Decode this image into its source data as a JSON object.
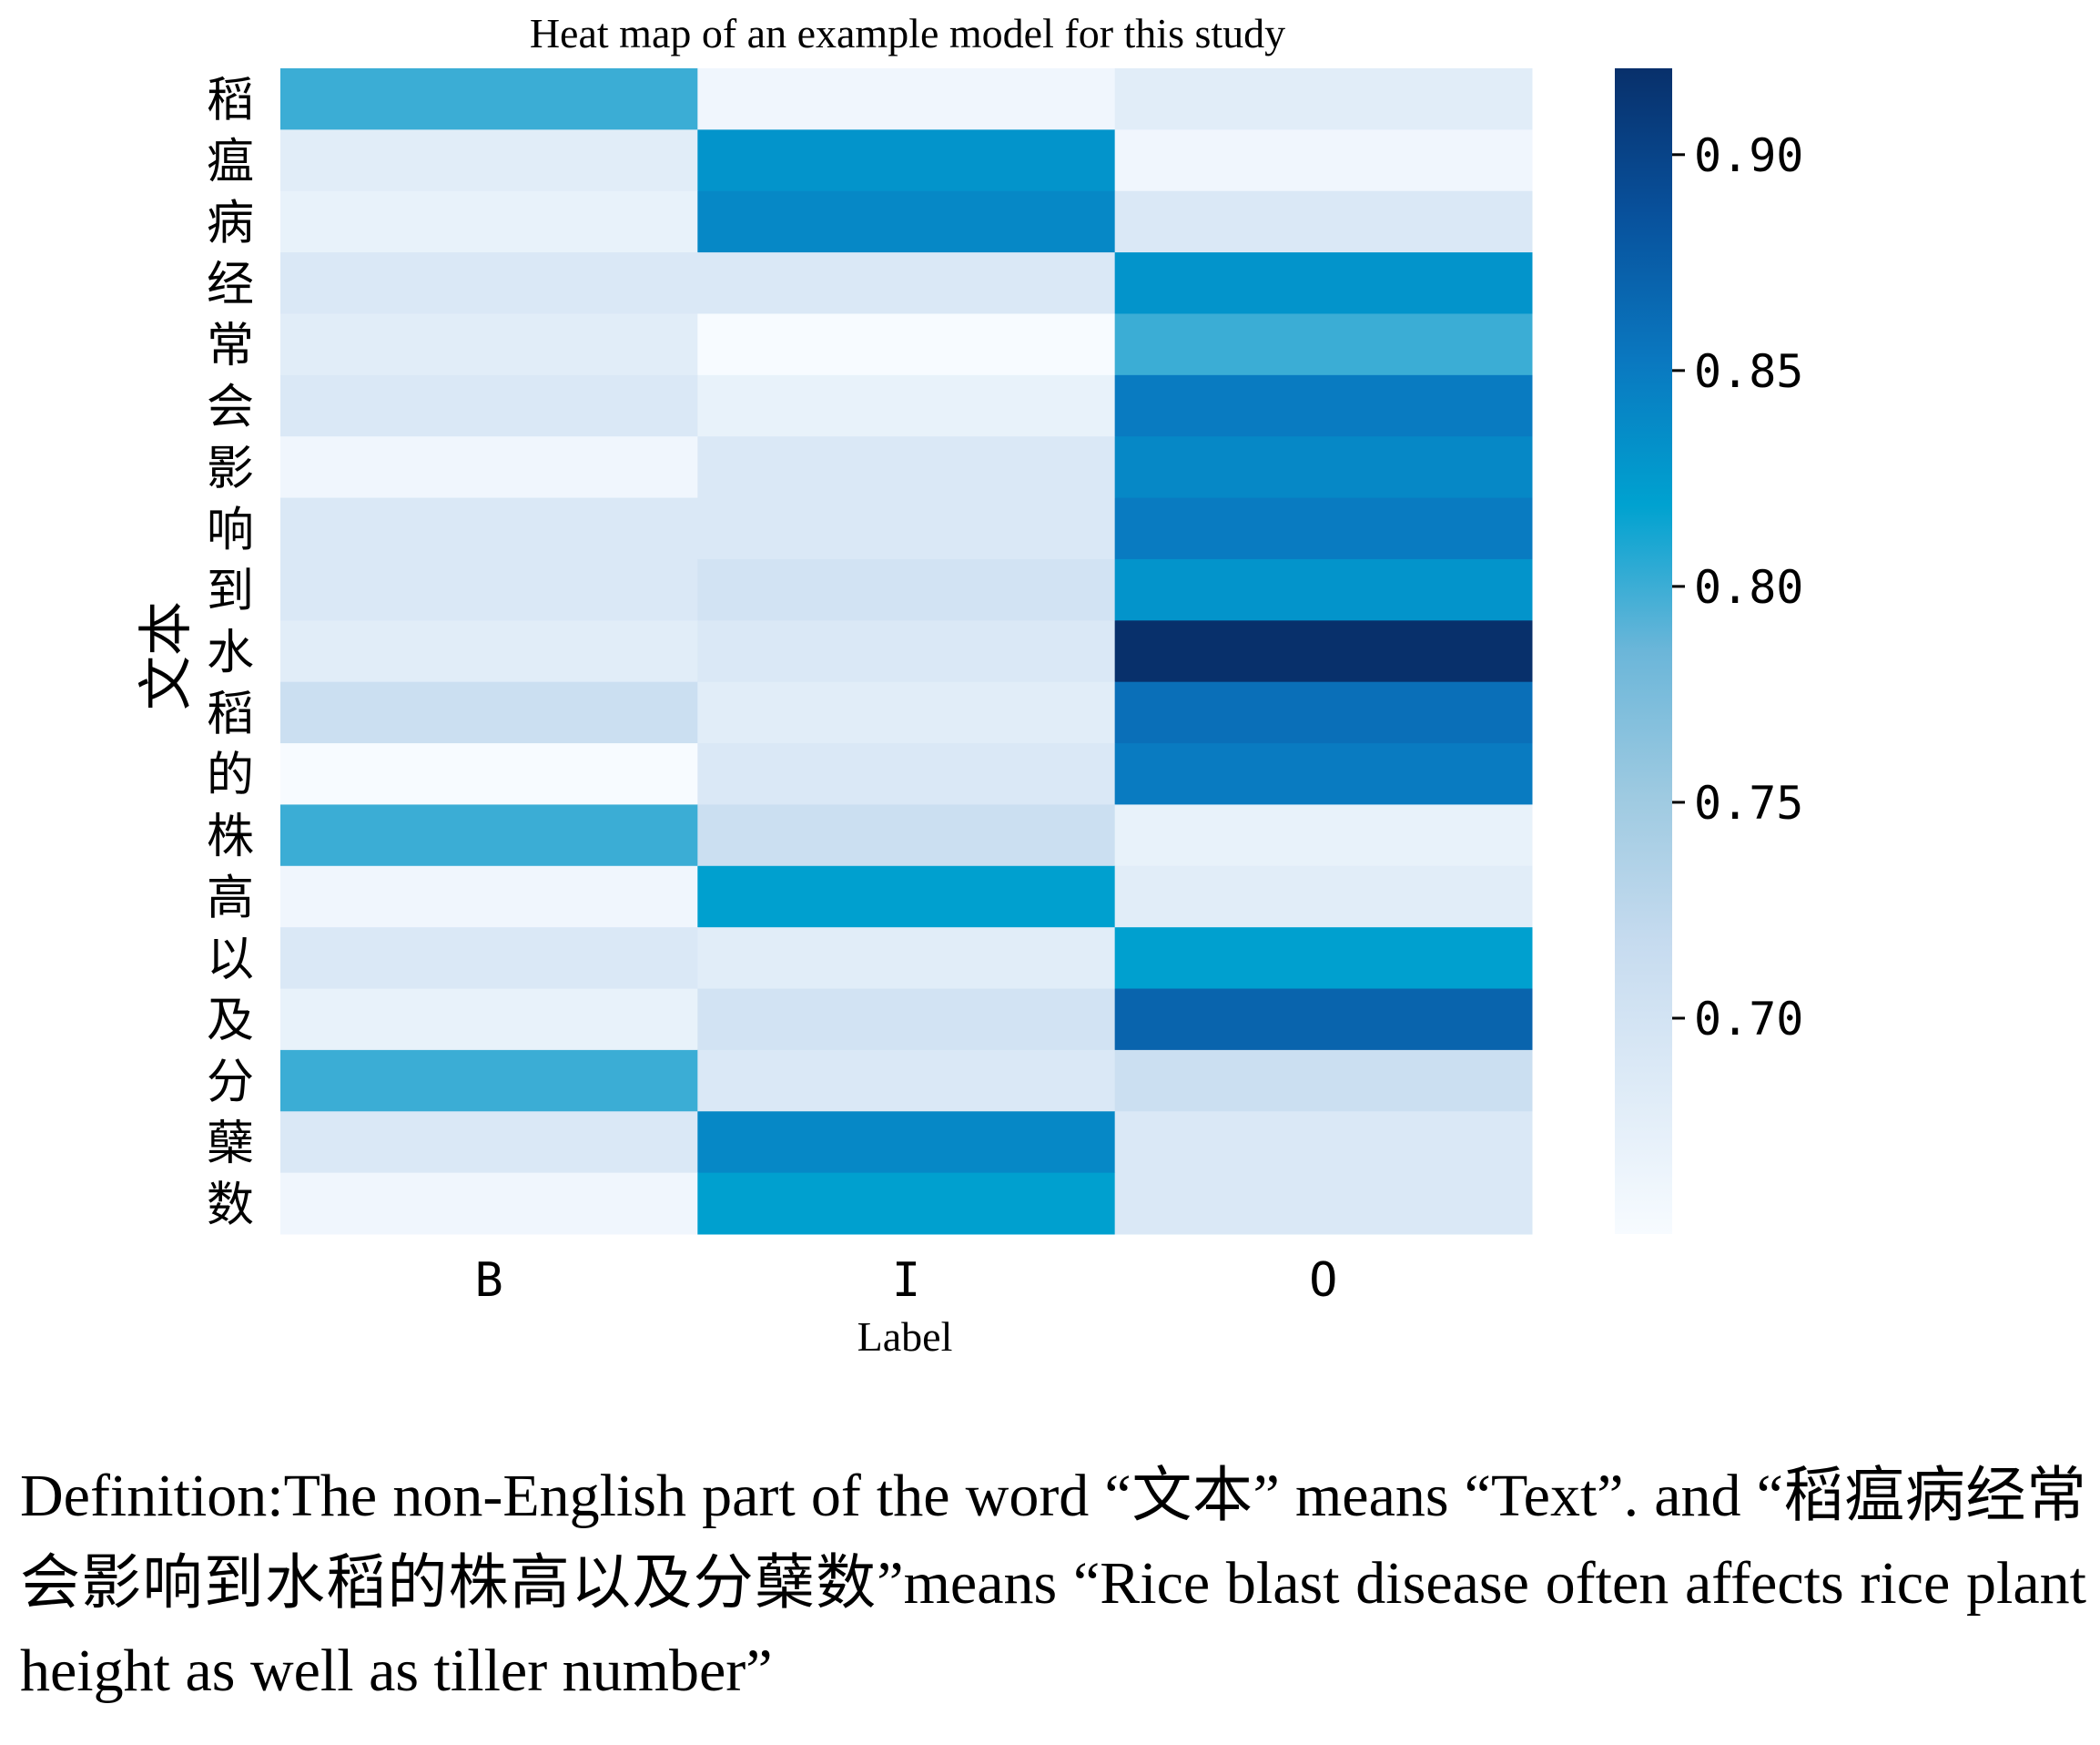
{
  "chart_data": {
    "type": "heatmap",
    "title": "Heat map of an example model for this study",
    "xlabel": "Label",
    "ylabel": "文本",
    "x_categories": [
      "B",
      "I",
      "O"
    ],
    "y_categories": [
      "稻",
      "瘟",
      "病",
      "经",
      "常",
      "会",
      "影",
      "响",
      "到",
      "水",
      "稻",
      "的",
      "株",
      "高",
      "以",
      "及",
      "分",
      "蘖",
      "数"
    ],
    "values": [
      [
        0.8,
        0.66,
        0.68
      ],
      [
        0.68,
        0.83,
        0.66
      ],
      [
        0.67,
        0.84,
        0.69
      ],
      [
        0.69,
        0.69,
        0.83
      ],
      [
        0.68,
        0.65,
        0.8
      ],
      [
        0.69,
        0.67,
        0.85
      ],
      [
        0.66,
        0.69,
        0.84
      ],
      [
        0.69,
        0.69,
        0.85
      ],
      [
        0.69,
        0.7,
        0.83
      ],
      [
        0.68,
        0.69,
        0.92
      ],
      [
        0.71,
        0.68,
        0.86
      ],
      [
        0.65,
        0.69,
        0.85
      ],
      [
        0.8,
        0.71,
        0.67
      ],
      [
        0.66,
        0.82,
        0.68
      ],
      [
        0.69,
        0.68,
        0.82
      ],
      [
        0.67,
        0.7,
        0.87
      ],
      [
        0.8,
        0.69,
        0.71
      ],
      [
        0.69,
        0.84,
        0.69
      ],
      [
        0.66,
        0.82,
        0.69
      ]
    ],
    "vmin": 0.65,
    "vmax": 0.92,
    "colormap": "Blues",
    "colorbar_ticks": [
      0.7,
      0.75,
      0.8,
      0.85,
      0.9
    ],
    "colorbar_tick_labels": [
      "0.70",
      "0.75",
      "0.80",
      "0.85",
      "0.90"
    ]
  },
  "caption": {
    "line1": "Definition:The non-English part of the word “文本” means “Text”. and",
    "line2": "“稻瘟病经常会影响到水稻的株高以及分蘖数”means “Rice blast disease",
    "line3": "often affects rice plant height as well as tiller number”"
  },
  "colors": {
    "text": "#000000",
    "background": "#ffffff"
  }
}
